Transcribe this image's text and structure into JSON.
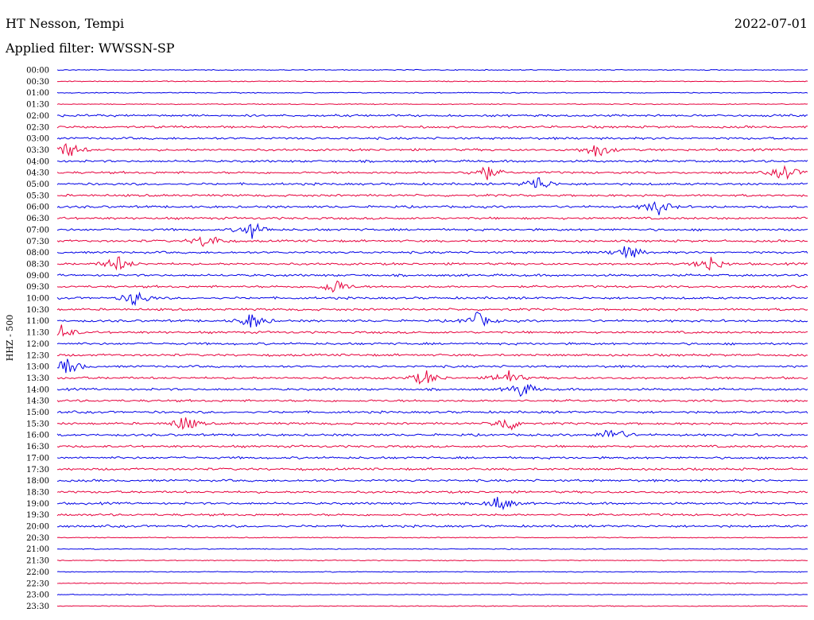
{
  "header": {
    "station": "HT Nesson, Tempi",
    "filter": "Applied filter: WWSSN-SP",
    "date": "2022-07-01"
  },
  "chart_data": {
    "type": "line",
    "title": "HT Nesson, Tempi",
    "subtitle": "Applied filter: WWSSN-SP",
    "ylabel": "HHZ - 500",
    "colors": {
      "even": "#0000e6",
      "odd": "#e6003c"
    },
    "traces": [
      {
        "label": "00:00",
        "bursts": []
      },
      {
        "label": "00:30",
        "bursts": []
      },
      {
        "label": "01:00",
        "bursts": []
      },
      {
        "label": "01:30",
        "bursts": []
      },
      {
        "label": "02:00",
        "bursts": []
      },
      {
        "label": "02:30",
        "bursts": []
      },
      {
        "label": "03:00",
        "bursts": []
      },
      {
        "label": "03:30",
        "bursts": [
          0.015,
          0.72
        ]
      },
      {
        "label": "04:00",
        "bursts": []
      },
      {
        "label": "04:30",
        "bursts": [
          0.57,
          0.97
        ]
      },
      {
        "label": "05:00",
        "bursts": [
          0.64
        ]
      },
      {
        "label": "05:30",
        "bursts": []
      },
      {
        "label": "06:00",
        "bursts": [
          0.8
        ]
      },
      {
        "label": "06:30",
        "bursts": []
      },
      {
        "label": "07:00",
        "bursts": [
          0.26
        ]
      },
      {
        "label": "07:30",
        "bursts": [
          0.2
        ]
      },
      {
        "label": "08:00",
        "bursts": [
          0.76
        ]
      },
      {
        "label": "08:30",
        "bursts": [
          0.08,
          0.87
        ]
      },
      {
        "label": "09:00",
        "bursts": []
      },
      {
        "label": "09:30",
        "bursts": [
          0.37
        ]
      },
      {
        "label": "10:00",
        "bursts": [
          0.105
        ]
      },
      {
        "label": "10:30",
        "bursts": []
      },
      {
        "label": "11:00",
        "bursts": [
          0.26,
          0.56
        ]
      },
      {
        "label": "11:30",
        "bursts": [
          0.005
        ]
      },
      {
        "label": "12:00",
        "bursts": []
      },
      {
        "label": "12:30",
        "bursts": []
      },
      {
        "label": "13:00",
        "bursts": [
          0.015
        ]
      },
      {
        "label": "13:30",
        "bursts": [
          0.49,
          0.6
        ]
      },
      {
        "label": "14:00",
        "bursts": [
          0.62
        ]
      },
      {
        "label": "14:30",
        "bursts": []
      },
      {
        "label": "15:00",
        "bursts": []
      },
      {
        "label": "15:30",
        "bursts": [
          0.17,
          0.6
        ]
      },
      {
        "label": "16:00",
        "bursts": [
          0.74
        ]
      },
      {
        "label": "16:30",
        "bursts": []
      },
      {
        "label": "17:00",
        "bursts": []
      },
      {
        "label": "17:30",
        "bursts": []
      },
      {
        "label": "18:00",
        "bursts": []
      },
      {
        "label": "18:30",
        "bursts": []
      },
      {
        "label": "19:00",
        "bursts": [
          0.59
        ]
      },
      {
        "label": "19:30",
        "bursts": []
      },
      {
        "label": "20:00",
        "bursts": []
      },
      {
        "label": "20:30",
        "bursts": []
      },
      {
        "label": "21:00",
        "bursts": []
      },
      {
        "label": "21:30",
        "bursts": []
      },
      {
        "label": "22:00",
        "bursts": []
      },
      {
        "label": "22:30",
        "bursts": []
      },
      {
        "label": "23:00",
        "bursts": []
      },
      {
        "label": "23:30",
        "bursts": []
      }
    ]
  }
}
